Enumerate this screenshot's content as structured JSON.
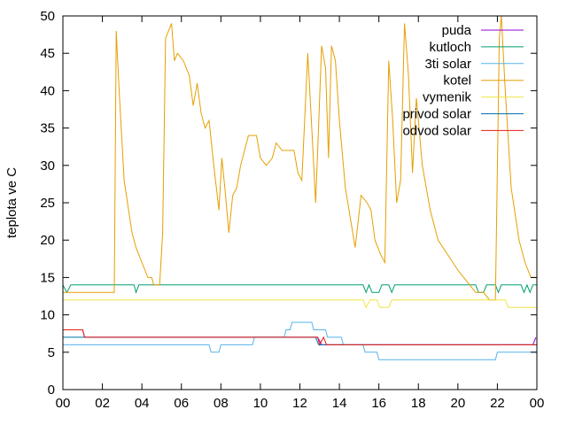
{
  "chart_data": {
    "type": "line",
    "title": "",
    "xlabel": "",
    "ylabel": "teplota ve C",
    "xlim": [
      0,
      24
    ],
    "ylim": [
      0,
      50
    ],
    "grid": false,
    "legend_position": "top-right",
    "x_ticks": [
      "00",
      "02",
      "04",
      "06",
      "08",
      "10",
      "12",
      "14",
      "16",
      "18",
      "20",
      "22",
      "00"
    ],
    "x_tick_values": [
      0,
      2,
      4,
      6,
      8,
      10,
      12,
      14,
      16,
      18,
      20,
      22,
      24
    ],
    "y_ticks": [
      0,
      5,
      10,
      15,
      20,
      25,
      30,
      35,
      40,
      45,
      50
    ],
    "series": [
      {
        "name": "puda",
        "color": "#9400d3",
        "points": [
          [
            0,
            8
          ],
          [
            1,
            8
          ],
          [
            1.1,
            7
          ],
          [
            12.9,
            7
          ],
          [
            13.1,
            6
          ],
          [
            23.8,
            6
          ],
          [
            23.95,
            7
          ]
        ]
      },
      {
        "name": "kutloch",
        "color": "#009e73",
        "points": [
          [
            0,
            14
          ],
          [
            0.2,
            13
          ],
          [
            0.4,
            14
          ],
          [
            3.6,
            14
          ],
          [
            3.7,
            13
          ],
          [
            3.85,
            14
          ],
          [
            15.2,
            14
          ],
          [
            15.35,
            13
          ],
          [
            15.5,
            14
          ],
          [
            15.65,
            13
          ],
          [
            16,
            13
          ],
          [
            16.15,
            14
          ],
          [
            16.5,
            14
          ],
          [
            16.65,
            13
          ],
          [
            16.8,
            14
          ],
          [
            20.9,
            14
          ],
          [
            21.05,
            13
          ],
          [
            21.3,
            13
          ],
          [
            21.45,
            14
          ],
          [
            21.9,
            14
          ],
          [
            22.05,
            13
          ],
          [
            22.2,
            14
          ],
          [
            23.2,
            14
          ],
          [
            23.35,
            13
          ],
          [
            23.5,
            14
          ],
          [
            23.65,
            13
          ],
          [
            23.8,
            14
          ],
          [
            24,
            14
          ]
        ]
      },
      {
        "name": "3ti solar",
        "color": "#56b4e9",
        "points": [
          [
            0,
            6
          ],
          [
            7.4,
            6
          ],
          [
            7.5,
            5
          ],
          [
            7.9,
            5
          ],
          [
            8.0,
            6
          ],
          [
            9.6,
            6
          ],
          [
            9.7,
            7
          ],
          [
            11.2,
            7
          ],
          [
            11.3,
            8
          ],
          [
            11.5,
            8
          ],
          [
            11.6,
            9
          ],
          [
            12.6,
            9
          ],
          [
            12.7,
            8
          ],
          [
            13.3,
            8
          ],
          [
            13.4,
            7
          ],
          [
            14.1,
            7
          ],
          [
            14.2,
            6
          ],
          [
            15.2,
            6
          ],
          [
            15.3,
            5
          ],
          [
            15.9,
            5
          ],
          [
            16.0,
            4
          ],
          [
            21.9,
            4
          ],
          [
            22.0,
            5
          ],
          [
            24,
            5
          ]
        ]
      },
      {
        "name": "kotel",
        "color": "#e69f00",
        "points": [
          [
            0,
            13
          ],
          [
            2.6,
            13
          ],
          [
            2.7,
            48
          ],
          [
            2.85,
            40
          ],
          [
            3.1,
            28
          ],
          [
            3.5,
            21
          ],
          [
            3.7,
            19
          ],
          [
            4,
            17
          ],
          [
            4.3,
            15
          ],
          [
            4.5,
            15
          ],
          [
            4.6,
            14
          ],
          [
            4.9,
            14
          ],
          [
            5.05,
            21
          ],
          [
            5.2,
            47
          ],
          [
            5.5,
            49
          ],
          [
            5.65,
            44
          ],
          [
            5.8,
            45
          ],
          [
            6.1,
            44
          ],
          [
            6.4,
            42
          ],
          [
            6.6,
            38
          ],
          [
            6.8,
            41
          ],
          [
            7.0,
            37
          ],
          [
            7.2,
            35
          ],
          [
            7.4,
            36
          ],
          [
            7.6,
            31
          ],
          [
            7.9,
            24
          ],
          [
            8.05,
            31
          ],
          [
            8.2,
            27
          ],
          [
            8.4,
            21
          ],
          [
            8.6,
            26
          ],
          [
            8.8,
            27
          ],
          [
            9.0,
            30
          ],
          [
            9.4,
            34
          ],
          [
            9.8,
            34
          ],
          [
            10.0,
            31
          ],
          [
            10.3,
            30
          ],
          [
            10.6,
            31
          ],
          [
            10.8,
            33
          ],
          [
            11.1,
            32
          ],
          [
            11.7,
            32
          ],
          [
            11.9,
            29
          ],
          [
            12.1,
            28
          ],
          [
            12.4,
            45
          ],
          [
            12.6,
            35
          ],
          [
            12.8,
            25
          ],
          [
            12.9,
            32
          ],
          [
            13.1,
            46
          ],
          [
            13.3,
            43
          ],
          [
            13.45,
            31
          ],
          [
            13.6,
            46
          ],
          [
            13.8,
            44
          ],
          [
            14.0,
            36
          ],
          [
            14.3,
            27
          ],
          [
            14.8,
            19
          ],
          [
            15.1,
            26
          ],
          [
            15.4,
            25
          ],
          [
            15.6,
            24
          ],
          [
            15.8,
            20
          ],
          [
            16.1,
            18
          ],
          [
            16.3,
            17
          ],
          [
            16.5,
            44
          ],
          [
            16.7,
            36
          ],
          [
            16.9,
            25
          ],
          [
            17.1,
            28
          ],
          [
            17.3,
            49
          ],
          [
            17.5,
            42
          ],
          [
            17.7,
            29
          ],
          [
            17.9,
            39
          ],
          [
            18.2,
            30
          ],
          [
            18.6,
            24
          ],
          [
            19.0,
            20
          ],
          [
            19.5,
            18
          ],
          [
            20.0,
            16
          ],
          [
            20.3,
            15
          ],
          [
            20.6,
            14
          ],
          [
            20.9,
            13
          ],
          [
            21.3,
            13
          ],
          [
            21.6,
            12
          ],
          [
            21.9,
            12
          ],
          [
            22.1,
            47
          ],
          [
            22.2,
            50
          ],
          [
            22.4,
            40
          ],
          [
            22.7,
            27
          ],
          [
            23.1,
            20
          ],
          [
            23.4,
            17
          ],
          [
            23.7,
            15
          ],
          [
            24,
            15
          ]
        ]
      },
      {
        "name": "vymenik",
        "color": "#f0e442",
        "points": [
          [
            0,
            12
          ],
          [
            15.2,
            12
          ],
          [
            15.35,
            11
          ],
          [
            15.55,
            12
          ],
          [
            15.9,
            12
          ],
          [
            16.05,
            11
          ],
          [
            16.5,
            11
          ],
          [
            16.65,
            12
          ],
          [
            22.4,
            12
          ],
          [
            22.55,
            11
          ],
          [
            24,
            11
          ]
        ]
      },
      {
        "name": "privod solar",
        "color": "#0072b2",
        "points": [
          [
            0,
            7
          ],
          [
            12.8,
            7
          ],
          [
            12.95,
            6
          ],
          [
            24,
            6
          ]
        ]
      },
      {
        "name": "odvod solar",
        "color": "#e51e10",
        "points": [
          [
            0,
            8
          ],
          [
            1,
            8
          ],
          [
            1.1,
            7
          ],
          [
            12.9,
            7
          ],
          [
            13.0,
            6
          ],
          [
            13.2,
            7
          ],
          [
            13.35,
            6
          ],
          [
            24,
            6
          ]
        ]
      }
    ]
  }
}
